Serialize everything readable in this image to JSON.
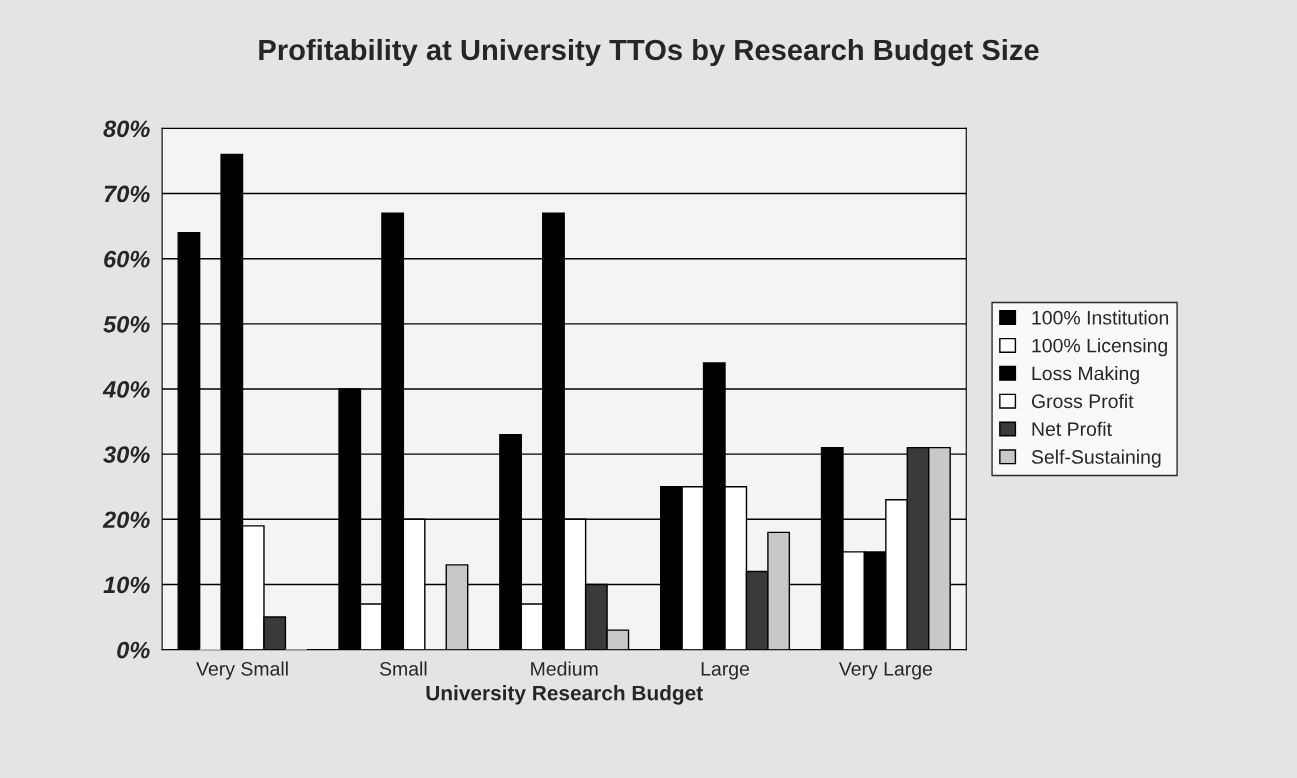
{
  "chart_data": {
    "type": "bar",
    "title": "Profitability at University TTOs by Research Budget Size",
    "xlabel": "University Research Budget",
    "categories": [
      "Very Small",
      "Small",
      "Medium",
      "Large",
      "Very Large"
    ],
    "series": [
      {
        "name": "100% Institution",
        "color": "#000000",
        "values": [
          64,
          40,
          33,
          25,
          31
        ]
      },
      {
        "name": "100% Licensing",
        "color": "#ffffff",
        "values": [
          0,
          7,
          7,
          25,
          15
        ]
      },
      {
        "name": "Loss Making",
        "color": "#000000",
        "values": [
          76,
          67,
          67,
          44,
          15
        ]
      },
      {
        "name": "Gross Profit",
        "color": "#ffffff",
        "values": [
          19,
          20,
          20,
          25,
          23
        ]
      },
      {
        "name": "Net Profit",
        "color": "#3a3a3a",
        "values": [
          5,
          0,
          10,
          12,
          31
        ]
      },
      {
        "name": "Self-Sustaining",
        "color": "#c8c8c8",
        "values": [
          0,
          13,
          3,
          18,
          31
        ]
      }
    ],
    "ylim": [
      0,
      80
    ],
    "yticks": [
      {
        "value": 0,
        "label": "0%"
      },
      {
        "value": 10,
        "label": "10%"
      },
      {
        "value": 20,
        "label": "20%"
      },
      {
        "value": 30,
        "label": "30%"
      },
      {
        "value": 40,
        "label": "40%"
      },
      {
        "value": 50,
        "label": "50%"
      },
      {
        "value": 60,
        "label": "60%"
      },
      {
        "value": 70,
        "label": "70%"
      },
      {
        "value": 80,
        "label": "80%"
      }
    ],
    "grid": "y",
    "legend": "right"
  }
}
